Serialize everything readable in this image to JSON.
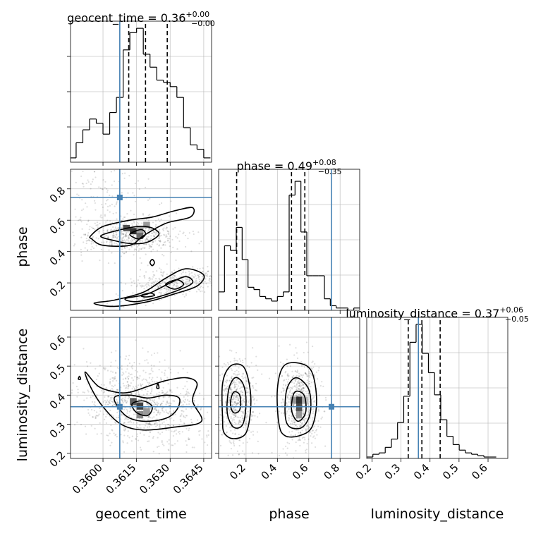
{
  "chart_data": {
    "type": "corner",
    "parameters": [
      "geocent_time",
      "phase",
      "luminosity_distance"
    ],
    "truths": {
      "geocent_time": 0.36075,
      "phase": 0.745,
      "luminosity_distance": 0.36
    },
    "truth_color": "#4682b4",
    "titles": {
      "geocent_time": {
        "name": "geocent_time",
        "median": "0.36",
        "plus": "+0.00",
        "minus": "−0.00"
      },
      "phase": {
        "name": "phase",
        "median": "0.49",
        "plus": "+0.08",
        "minus": "−0.35"
      },
      "luminosity_distance": {
        "name": "luminosity_distance",
        "median": "0.37",
        "plus": "+0.06",
        "minus": "−0.05"
      }
    },
    "xlabels": [
      "geocent_time",
      "phase",
      "luminosity_distance"
    ],
    "ylabels": [
      "phase",
      "luminosity_distance"
    ],
    "axes": {
      "geocent_time": {
        "range": [
          0.35855,
          0.36485
        ],
        "ticks": [
          0.36,
          0.3615,
          0.363,
          0.3645
        ],
        "tick_labels": [
          "0.3600",
          "0.3615",
          "0.3630",
          "0.3645"
        ]
      },
      "phase": {
        "range": [
          0.025,
          0.925
        ],
        "ticks": [
          0.2,
          0.4,
          0.6,
          0.8
        ],
        "tick_labels": [
          "0.2",
          "0.4",
          "0.6",
          "0.8"
        ]
      },
      "luminosity_distance": {
        "range": [
          0.182,
          0.668
        ],
        "ticks": [
          0.2,
          0.3,
          0.4,
          0.5,
          0.6
        ],
        "tick_labels": [
          "0.2",
          "0.3",
          "0.4",
          "0.5",
          "0.6"
        ]
      }
    },
    "histograms": {
      "geocent_time": {
        "bins": [
          0.3585,
          0.3588,
          0.3591,
          0.3594,
          0.3597,
          0.36,
          0.3603,
          0.3606,
          0.3609,
          0.3612,
          0.3615,
          0.3618,
          0.3621,
          0.3624,
          0.3627,
          0.363,
          0.3633,
          0.3636,
          0.3639,
          0.3642,
          0.3645,
          0.3648
        ],
        "counts": [
          2,
          9,
          15,
          20,
          18,
          13,
          23,
          30,
          52,
          60,
          62,
          50,
          44,
          38,
          37,
          35,
          30,
          16,
          8,
          6,
          2
        ],
        "ymax": 64,
        "quantiles": [
          0.36115,
          0.3619,
          0.36287
        ]
      },
      "phase": {
        "bins": [
          0.025,
          0.0625,
          0.1,
          0.1375,
          0.175,
          0.2125,
          0.25,
          0.2875,
          0.325,
          0.3625,
          0.4,
          0.4375,
          0.475,
          0.5125,
          0.55,
          0.5875,
          0.625,
          0.6625,
          0.7,
          0.7375,
          0.775,
          0.8125,
          0.85,
          0.8875,
          0.925
        ],
        "counts": [
          8,
          28,
          26,
          36,
          22,
          10,
          9,
          6,
          5,
          4,
          6,
          8,
          50,
          56,
          34,
          15,
          15,
          15,
          5,
          2,
          1,
          1,
          0,
          1
        ],
        "ymax": 60,
        "quantiles": [
          0.14,
          0.49,
          0.575
        ]
      },
      "luminosity_distance": {
        "bins": [
          0.182,
          0.2032,
          0.2245,
          0.2457,
          0.267,
          0.2882,
          0.3095,
          0.3307,
          0.352,
          0.3732,
          0.3945,
          0.4157,
          0.437,
          0.4582,
          0.4795,
          0.5007,
          0.522,
          0.5432,
          0.5645,
          0.5857,
          0.607,
          0.6282
        ],
        "counts": [
          1,
          3,
          4,
          8,
          14,
          26,
          45,
          84,
          97,
          76,
          62,
          46,
          28,
          16,
          10,
          6,
          4,
          3,
          2,
          1,
          1
        ],
        "ymax": 100,
        "quantiles": [
          0.325,
          0.372,
          0.435
        ]
      }
    }
  }
}
